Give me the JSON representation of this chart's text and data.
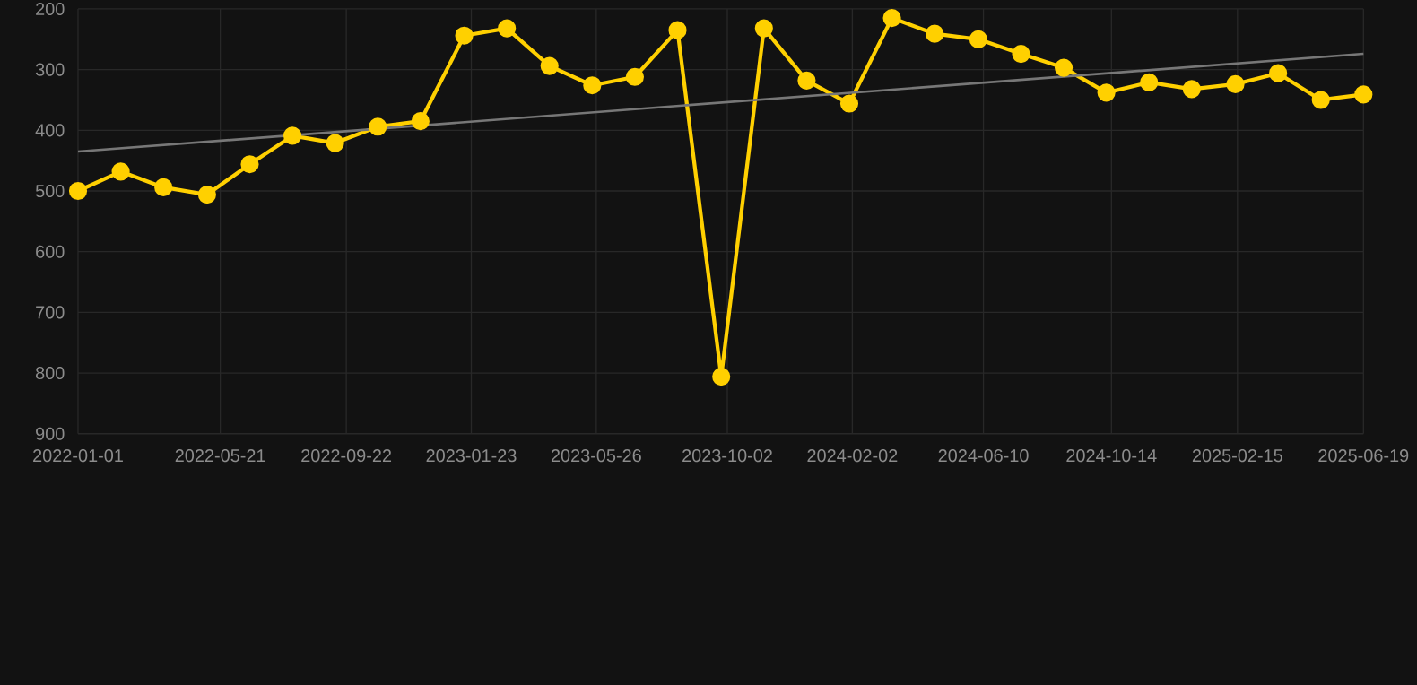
{
  "chart_data": {
    "type": "line",
    "x": [
      "2022-01-01",
      "2022-02-12",
      "2022-03-26",
      "2022-05-08",
      "2022-06-19",
      "2022-07-31",
      "2022-09-11",
      "2022-10-23",
      "2022-12-04",
      "2023-01-16",
      "2023-02-27",
      "2023-04-10",
      "2023-05-22",
      "2023-07-03",
      "2023-08-14",
      "2023-09-26",
      "2023-11-07",
      "2023-12-19",
      "2024-01-30",
      "2024-03-12",
      "2024-04-23",
      "2024-06-05",
      "2024-07-17",
      "2024-08-28",
      "2024-10-09",
      "2024-11-20",
      "2025-01-01",
      "2025-02-13",
      "2025-03-27",
      "2025-05-08",
      "2025-06-19"
    ],
    "series": [
      {
        "color": "#ffd000",
        "marker": "circle",
        "values": [
          500,
          468,
          494,
          506,
          456,
          409,
          421,
          394,
          385,
          244,
          232,
          294,
          326,
          312,
          235,
          806,
          232,
          318,
          356,
          215,
          241,
          250,
          274,
          297,
          338,
          321,
          332,
          324,
          306,
          350,
          341
        ]
      },
      {
        "color": "#777777",
        "marker": "none",
        "x": [
          "2022-01-01",
          "2025-06-19"
        ],
        "values": [
          435,
          274
        ]
      }
    ],
    "ylim": [
      900,
      200
    ],
    "yticks": [
      200,
      300,
      400,
      500,
      600,
      700,
      800,
      900
    ],
    "xlim": [
      "2022-01-01",
      "2025-06-19"
    ],
    "xticks": [
      "2022-01-01",
      "2022-05-21",
      "2022-09-22",
      "2023-01-23",
      "2023-05-26",
      "2023-10-02",
      "2024-02-02",
      "2024-06-10",
      "2024-10-14",
      "2025-02-15",
      "2025-06-19"
    ],
    "grid": true,
    "line_style": "solid"
  }
}
